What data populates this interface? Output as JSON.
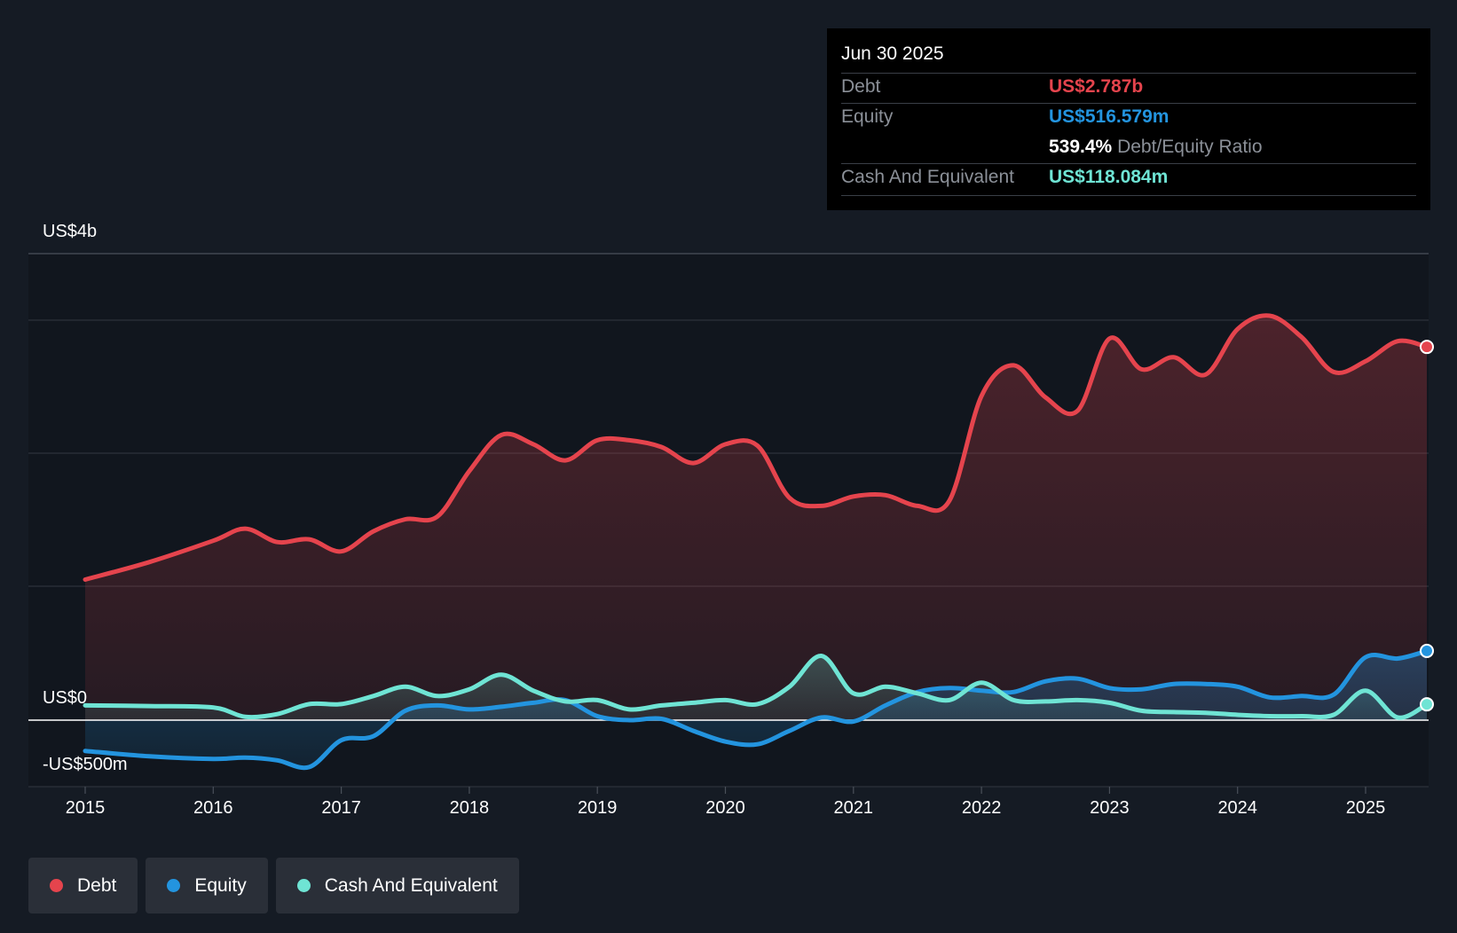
{
  "tooltip": {
    "date": "Jun 30 2025",
    "debt_label": "Debt",
    "debt_value": "US$2.787b",
    "equity_label": "Equity",
    "equity_value": "US$516.579m",
    "ratio_value": "539.4%",
    "ratio_label": "Debt/Equity Ratio",
    "cash_label": "Cash And Equivalent",
    "cash_value": "US$118.084m"
  },
  "legend": {
    "debt": "Debt",
    "equity": "Equity",
    "cash": "Cash And Equivalent"
  },
  "colors": {
    "debt": "#e5444d",
    "equity": "#2394df",
    "cash": "#6fe4d4",
    "background": "#151b24"
  },
  "chart_data": {
    "type": "line",
    "title": "",
    "xlabel": "",
    "ylabel": "",
    "ylim": [
      -500,
      3500
    ],
    "xlim": [
      2014.55,
      2025.55
    ],
    "y_tick_labels": {
      "top": "US$4b",
      "zero": "US$0",
      "bottom": "-US$500m"
    },
    "x_tick_labels": [
      "2015",
      "2016",
      "2017",
      "2018",
      "2019",
      "2020",
      "2021",
      "2022",
      "2023",
      "2024",
      "2025"
    ],
    "series": [
      {
        "name": "Debt",
        "x": [
          2015.0,
          2015.5,
          2016.0,
          2016.25,
          2016.5,
          2016.75,
          2017.0,
          2017.25,
          2017.5,
          2017.75,
          2018.0,
          2018.25,
          2018.5,
          2018.75,
          2019.0,
          2019.25,
          2019.5,
          2019.75,
          2020.0,
          2020.25,
          2020.5,
          2020.75,
          2021.0,
          2021.25,
          2021.5,
          2021.75,
          2022.0,
          2022.25,
          2022.5,
          2022.75,
          2023.0,
          2023.25,
          2023.5,
          2023.75,
          2024.0,
          2024.25,
          2024.5,
          2024.75,
          2025.0,
          2025.25,
          2025.5
        ],
        "values": [
          1050,
          1180,
          1340,
          1430,
          1330,
          1350,
          1260,
          1410,
          1500,
          1520,
          1860,
          2130,
          2060,
          1940,
          2090,
          2090,
          2040,
          1920,
          2060,
          2050,
          1660,
          1600,
          1670,
          1680,
          1600,
          1640,
          2420,
          2650,
          2410,
          2310,
          2850,
          2620,
          2710,
          2580,
          2920,
          3020,
          2860,
          2600,
          2680,
          2830,
          2787
        ]
      },
      {
        "name": "Equity",
        "x": [
          2015.0,
          2015.5,
          2016.0,
          2016.25,
          2016.5,
          2016.75,
          2017.0,
          2017.25,
          2017.5,
          2017.75,
          2018.0,
          2018.25,
          2018.5,
          2018.75,
          2019.0,
          2019.25,
          2019.5,
          2019.75,
          2020.0,
          2020.25,
          2020.5,
          2020.75,
          2021.0,
          2021.25,
          2021.5,
          2021.75,
          2022.0,
          2022.25,
          2022.5,
          2022.75,
          2023.0,
          2023.25,
          2023.5,
          2023.75,
          2024.0,
          2024.25,
          2024.5,
          2024.75,
          2025.0,
          2025.25,
          2025.5
        ],
        "values": [
          -230,
          -270,
          -290,
          -280,
          -300,
          -350,
          -150,
          -120,
          70,
          110,
          80,
          100,
          130,
          150,
          30,
          0,
          10,
          -80,
          -160,
          -180,
          -80,
          20,
          -10,
          110,
          210,
          240,
          220,
          210,
          290,
          310,
          240,
          230,
          270,
          270,
          250,
          170,
          180,
          190,
          470,
          460,
          517
        ]
      },
      {
        "name": "Cash And Equivalent",
        "x": [
          2015.0,
          2015.5,
          2016.0,
          2016.25,
          2016.5,
          2016.75,
          2017.0,
          2017.25,
          2017.5,
          2017.75,
          2018.0,
          2018.25,
          2018.5,
          2018.75,
          2019.0,
          2019.25,
          2019.5,
          2019.75,
          2020.0,
          2020.25,
          2020.5,
          2020.75,
          2021.0,
          2021.25,
          2021.5,
          2021.75,
          2022.0,
          2022.25,
          2022.5,
          2022.75,
          2023.0,
          2023.25,
          2023.5,
          2023.75,
          2024.0,
          2024.25,
          2024.5,
          2024.75,
          2025.0,
          2025.25,
          2025.5
        ],
        "values": [
          110,
          105,
          95,
          25,
          45,
          120,
          120,
          180,
          250,
          180,
          230,
          340,
          220,
          140,
          150,
          80,
          110,
          130,
          150,
          120,
          250,
          480,
          200,
          250,
          200,
          150,
          280,
          150,
          140,
          150,
          130,
          70,
          60,
          55,
          40,
          30,
          30,
          40,
          220,
          20,
          118
        ]
      }
    ]
  }
}
